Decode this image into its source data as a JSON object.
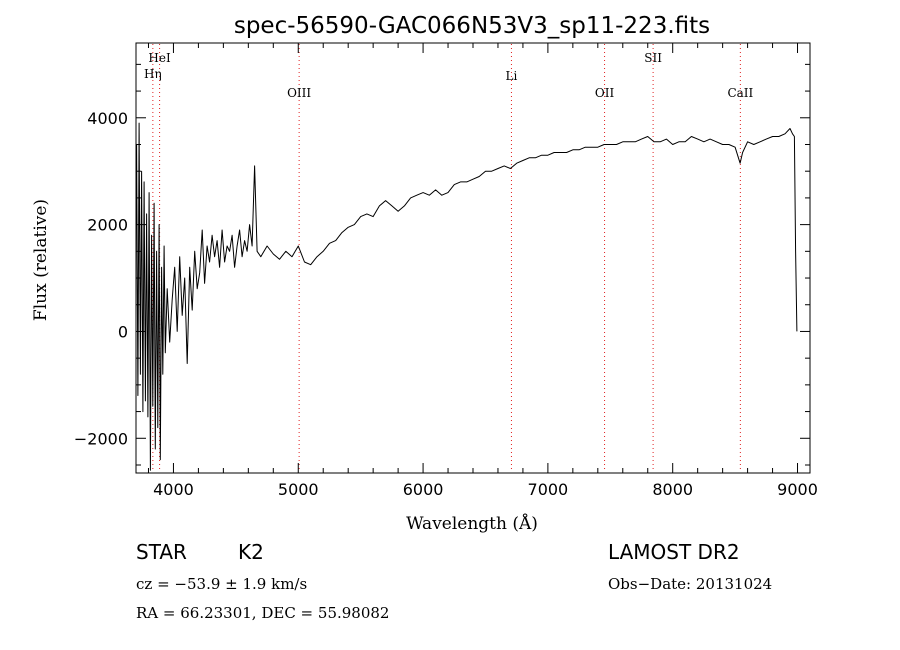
{
  "chart_data": {
    "type": "line",
    "title": "spec-56590-GAC066N53V3_sp11-223.fits",
    "xlabel": "Wavelength (Å)",
    "ylabel": "Flux (relative)",
    "xlim": [
      3700,
      9100
    ],
    "ylim": [
      -2650,
      5400
    ],
    "x_ticks": [
      4000,
      5000,
      6000,
      7000,
      8000,
      9000
    ],
    "y_ticks": [
      -2000,
      0,
      2000,
      4000
    ],
    "grid": false,
    "lines": [
      {
        "label": "Hη",
        "x": 3835
      },
      {
        "label": "HeI",
        "x": 3889
      },
      {
        "label": "OIII",
        "x": 5007
      },
      {
        "label": "Li",
        "x": 6708
      },
      {
        "label": "OII",
        "x": 7454
      },
      {
        "label": "SII",
        "x": 7843
      },
      {
        "label": "CaII",
        "x": 8542
      }
    ],
    "series": [
      {
        "x": [
          3705,
          3715,
          3725,
          3735,
          3745,
          3755,
          3765,
          3775,
          3785,
          3795,
          3805,
          3815,
          3825,
          3835,
          3845,
          3855,
          3865,
          3875,
          3885,
          3895,
          3905,
          3915,
          3925,
          3935,
          3950,
          3970,
          3990,
          4010,
          4030,
          4050,
          4070,
          4090,
          4110,
          4130,
          4150,
          4170,
          4190,
          4210,
          4230,
          4250,
          4270,
          4290,
          4310,
          4330,
          4350,
          4370,
          4390,
          4410,
          4430,
          4450,
          4470,
          4490,
          4510,
          4530,
          4550,
          4570,
          4590,
          4610,
          4630,
          4650,
          4670,
          4700,
          4750,
          4800,
          4850,
          4900,
          4950,
          5000,
          5050,
          5100,
          5150,
          5200,
          5250,
          5300,
          5350,
          5400,
          5450,
          5500,
          5550,
          5600,
          5650,
          5700,
          5750,
          5800,
          5850,
          5900,
          5950,
          6000,
          6050,
          6100,
          6150,
          6200,
          6250,
          6300,
          6350,
          6400,
          6450,
          6500,
          6550,
          6600,
          6650,
          6700,
          6750,
          6800,
          6850,
          6900,
          6950,
          7000,
          7050,
          7100,
          7150,
          7200,
          7250,
          7300,
          7350,
          7400,
          7450,
          7500,
          7550,
          7600,
          7650,
          7700,
          7750,
          7800,
          7850,
          7900,
          7950,
          8000,
          8050,
          8100,
          8150,
          8200,
          8250,
          8300,
          8350,
          8400,
          8450,
          8500,
          8540,
          8560,
          8600,
          8650,
          8700,
          8750,
          8800,
          8850,
          8900,
          8940,
          8960,
          8975,
          8985,
          8995
        ],
        "y": [
          3500,
          -1200,
          3900,
          -800,
          3000,
          -1500,
          2800,
          -1300,
          2200,
          -1600,
          2600,
          -2600,
          1800,
          -1400,
          2400,
          -2200,
          1500,
          -1800,
          2000,
          -2400,
          1200,
          -800,
          1600,
          -400,
          800,
          -200,
          600,
          1200,
          0,
          1400,
          300,
          1000,
          -600,
          1200,
          400,
          1500,
          800,
          1100,
          1900,
          900,
          1600,
          1300,
          1800,
          1400,
          1700,
          1200,
          1900,
          1300,
          1600,
          1500,
          1800,
          1200,
          1600,
          1900,
          1400,
          1700,
          1500,
          2000,
          1600,
          3100,
          1500,
          1400,
          1600,
          1450,
          1350,
          1500,
          1400,
          1600,
          1300,
          1250,
          1400,
          1500,
          1650,
          1700,
          1850,
          1950,
          2000,
          2150,
          2200,
          2150,
          2350,
          2450,
          2350,
          2250,
          2350,
          2500,
          2550,
          2600,
          2550,
          2650,
          2550,
          2600,
          2750,
          2800,
          2800,
          2850,
          2900,
          3000,
          3000,
          3050,
          3100,
          3050,
          3150,
          3200,
          3250,
          3250,
          3300,
          3300,
          3350,
          3350,
          3350,
          3400,
          3400,
          3450,
          3450,
          3450,
          3500,
          3500,
          3500,
          3550,
          3550,
          3550,
          3600,
          3650,
          3550,
          3550,
          3600,
          3500,
          3550,
          3550,
          3650,
          3600,
          3550,
          3600,
          3550,
          3500,
          3500,
          3450,
          3150,
          3350,
          3550,
          3500,
          3550,
          3600,
          3650,
          3650,
          3700,
          3800,
          3700,
          3650,
          1500,
          0
        ]
      }
    ]
  },
  "footer": {
    "object_label": "STAR",
    "subclass": "K2",
    "survey": "LAMOST DR2",
    "cz": "cz = −53.9 ± 1.9 km/s",
    "obs_date": "Obs−Date: 20131024",
    "coords": "RA =  66.23301, DEC =  55.98082"
  }
}
